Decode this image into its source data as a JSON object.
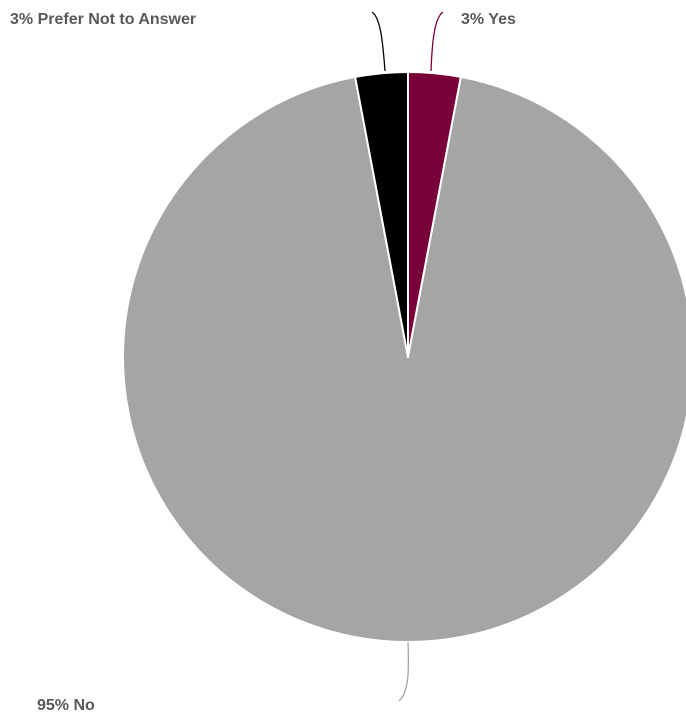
{
  "chart_data": {
    "type": "pie",
    "title": "",
    "slices": [
      {
        "label": "Yes",
        "value": 3,
        "color": "#7a0039",
        "display": "3% Yes"
      },
      {
        "label": "No",
        "value": 95,
        "color": "#a5a5a5",
        "display": "95% No"
      },
      {
        "label": "Prefer Not to Answer",
        "value": 3,
        "color": "#000000",
        "display": "3% Prefer Not to Answer"
      }
    ]
  }
}
